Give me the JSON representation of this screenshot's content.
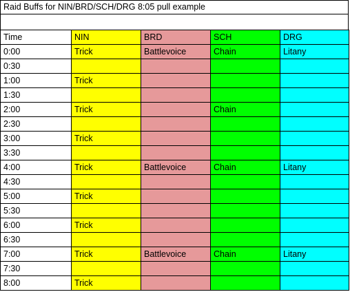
{
  "sheet": {
    "title": "Raid Buffs for NIN/BRD/SCH/DRG 8:05 pull example",
    "headers": [
      "Time",
      "NIN",
      "BRD",
      "SCH",
      "DRG"
    ],
    "column_colors": {
      "time": "#ffffff",
      "nin": "#ffff00",
      "brd": "#e6999a",
      "sch": "#00ff00",
      "drg": "#00ffff"
    },
    "rows": [
      [
        "0:00",
        "Trick",
        "Battlevoice",
        "Chain",
        "Litany"
      ],
      [
        "0:30",
        "",
        "",
        "",
        ""
      ],
      [
        "1:00",
        "Trick",
        "",
        "",
        ""
      ],
      [
        "1:30",
        "",
        "",
        "",
        ""
      ],
      [
        "2:00",
        "Trick",
        "",
        "Chain",
        ""
      ],
      [
        "2:30",
        "",
        "",
        "",
        ""
      ],
      [
        "3:00",
        "Trick",
        "",
        "",
        ""
      ],
      [
        "3:30",
        "",
        "",
        "",
        ""
      ],
      [
        "4:00",
        "Trick",
        "Battlevoice",
        "Chain",
        "Litany"
      ],
      [
        "4:30",
        "",
        "",
        "",
        ""
      ],
      [
        "5:00",
        "Trick",
        "",
        "",
        ""
      ],
      [
        "5:30",
        "",
        "",
        "",
        ""
      ],
      [
        "6:00",
        "Trick",
        "",
        "",
        ""
      ],
      [
        "6:30",
        "",
        "",
        "",
        ""
      ],
      [
        "7:00",
        "Trick",
        "Battlevoice",
        "Chain",
        "Litany"
      ],
      [
        "7:30",
        "",
        "",
        "",
        ""
      ],
      [
        "8:00",
        "Trick",
        "",
        "",
        ""
      ]
    ]
  }
}
